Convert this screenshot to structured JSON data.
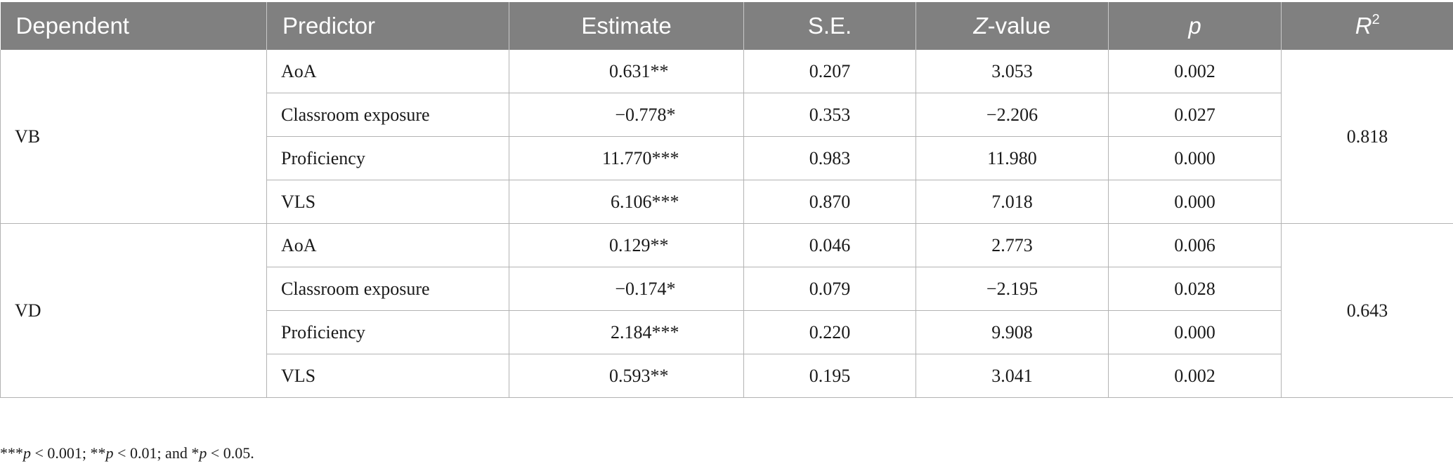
{
  "table": {
    "headers": {
      "dependent": "Dependent",
      "predictor": "Predictor",
      "estimate": "Estimate",
      "se": "S.E.",
      "z_italic": "Z",
      "z_rest": "-value",
      "p": "p",
      "r_base": "R",
      "r_sup": "2"
    },
    "groups": [
      {
        "dependent": "VB",
        "r2": "0.818",
        "rows": [
          {
            "predictor": "AoA",
            "estimate": "0.631**",
            "se": "0.207",
            "z": "3.053",
            "p": "0.002"
          },
          {
            "predictor": "Classroom exposure",
            "estimate": "−0.778*",
            "se": "0.353",
            "z": "−2.206",
            "p": "0.027"
          },
          {
            "predictor": "Proficiency",
            "estimate": "11.770***",
            "se": "0.983",
            "z": "11.980",
            "p": "0.000"
          },
          {
            "predictor": "VLS",
            "estimate": "6.106***",
            "se": "0.870",
            "z": "7.018",
            "p": "0.000"
          }
        ]
      },
      {
        "dependent": "VD",
        "r2": "0.643",
        "rows": [
          {
            "predictor": "AoA",
            "estimate": "0.129**",
            "se": "0.046",
            "z": "2.773",
            "p": "0.006"
          },
          {
            "predictor": "Classroom exposure",
            "estimate": "−0.174*",
            "se": "0.079",
            "z": "−2.195",
            "p": "0.028"
          },
          {
            "predictor": "Proficiency",
            "estimate": "2.184***",
            "se": "0.220",
            "z": "9.908",
            "p": "0.000"
          },
          {
            "predictor": "VLS",
            "estimate": "0.593**",
            "se": "0.195",
            "z": "3.041",
            "p": "0.002"
          }
        ]
      }
    ]
  },
  "footnote": {
    "stars3": "***",
    "p1": "p",
    "t1": " < 0.001; ",
    "stars2": "**",
    "p2": "p",
    "t2": " < 0.01; and ",
    "stars1": "*",
    "p3": "p",
    "t3": " < 0.05."
  }
}
